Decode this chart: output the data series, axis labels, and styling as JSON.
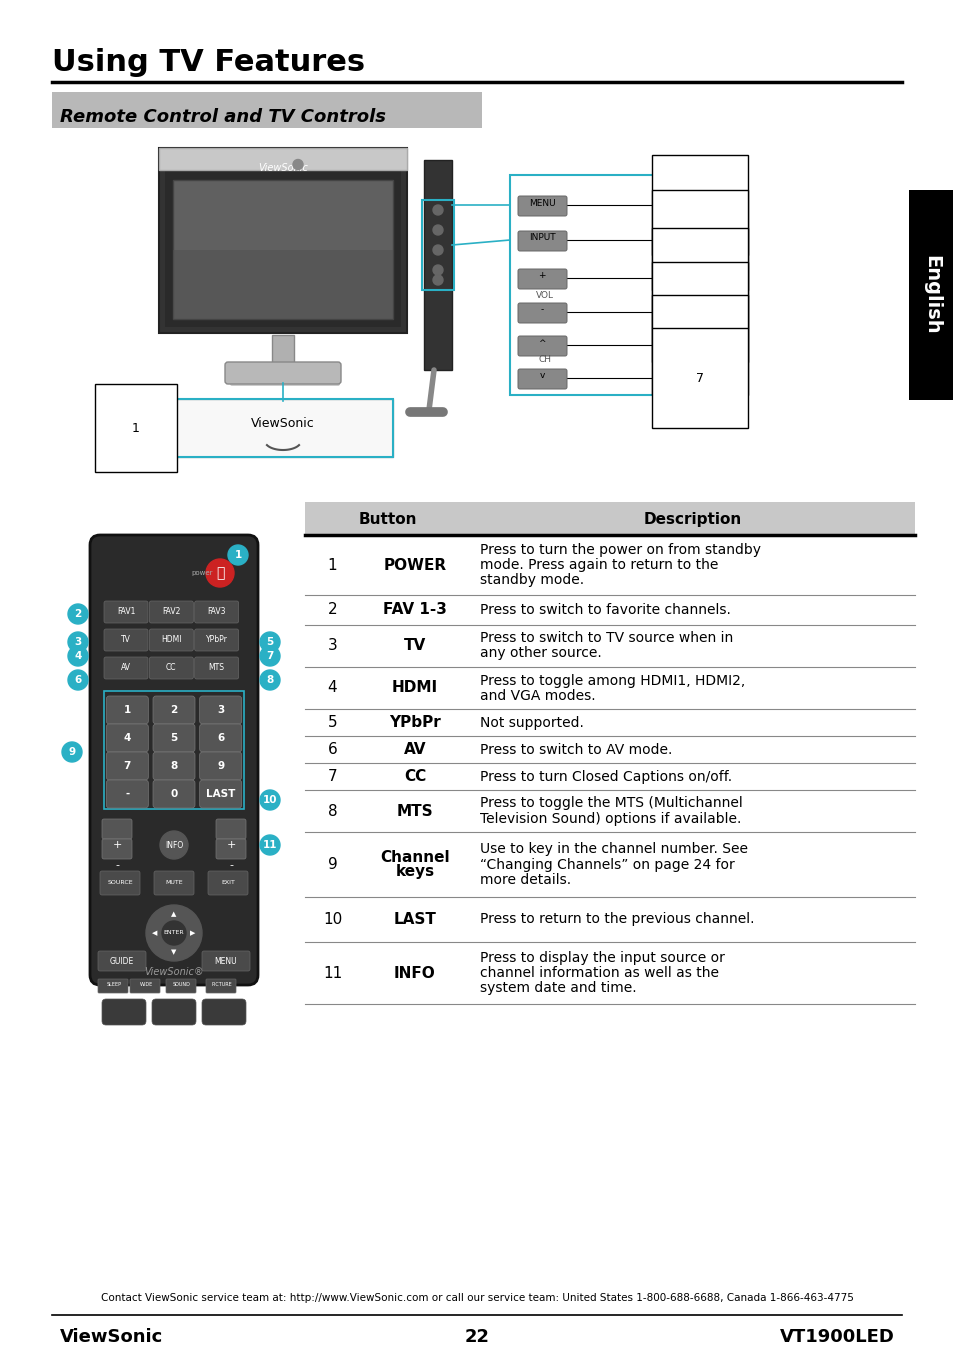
{
  "title": "Using TV Features",
  "subtitle": "Remote Control and TV Controls",
  "table_header": [
    "Button",
    "Description"
  ],
  "table_rows": [
    [
      "1",
      "POWER",
      "Press to turn the power on from standby\nmode. Press again to return to the\nstandby mode."
    ],
    [
      "2",
      "FAV 1-3",
      "Press to switch to favorite channels."
    ],
    [
      "3",
      "TV",
      "Press to switch to TV source when in\nany other source."
    ],
    [
      "4",
      "HDMI",
      "Press to toggle among HDMI1, HDMI2,\nand VGA modes."
    ],
    [
      "5",
      "YPbPr",
      "Not supported."
    ],
    [
      "6",
      "AV",
      "Press to switch to AV mode."
    ],
    [
      "7",
      "CC",
      "Press to turn Closed Captions on/off."
    ],
    [
      "8",
      "MTS",
      "Press to toggle the MTS (Multichannel\nTelevision Sound) options if available."
    ],
    [
      "9",
      "Channel\nkeys",
      "Use to key in the channel number. See\n“Changing Channels” on page 24 for\nmore details."
    ],
    [
      "10",
      "LAST",
      "Press to return to the previous channel."
    ],
    [
      "11",
      "INFO",
      "Press to display the input source or\nchannel information as well as the\nsystem date and time."
    ]
  ],
  "footer_contact": "Contact ViewSonic service team at: http://www.ViewSonic.com or call our service team: United States 1-800-688-6688, Canada 1-866-463-4775",
  "footer_left": "ViewSonic",
  "footer_center": "22",
  "footer_right": "VT1900LED",
  "english_tab_text": "English",
  "header_color": "#c8c8c8",
  "teal_color": "#2ab0c5",
  "bg_color": "#ffffff",
  "subtitle_bg": "#b8b8b8",
  "remote_color": "#2a2a2a",
  "remote_btn_color": "#444444",
  "remote_num_color": "#555555"
}
